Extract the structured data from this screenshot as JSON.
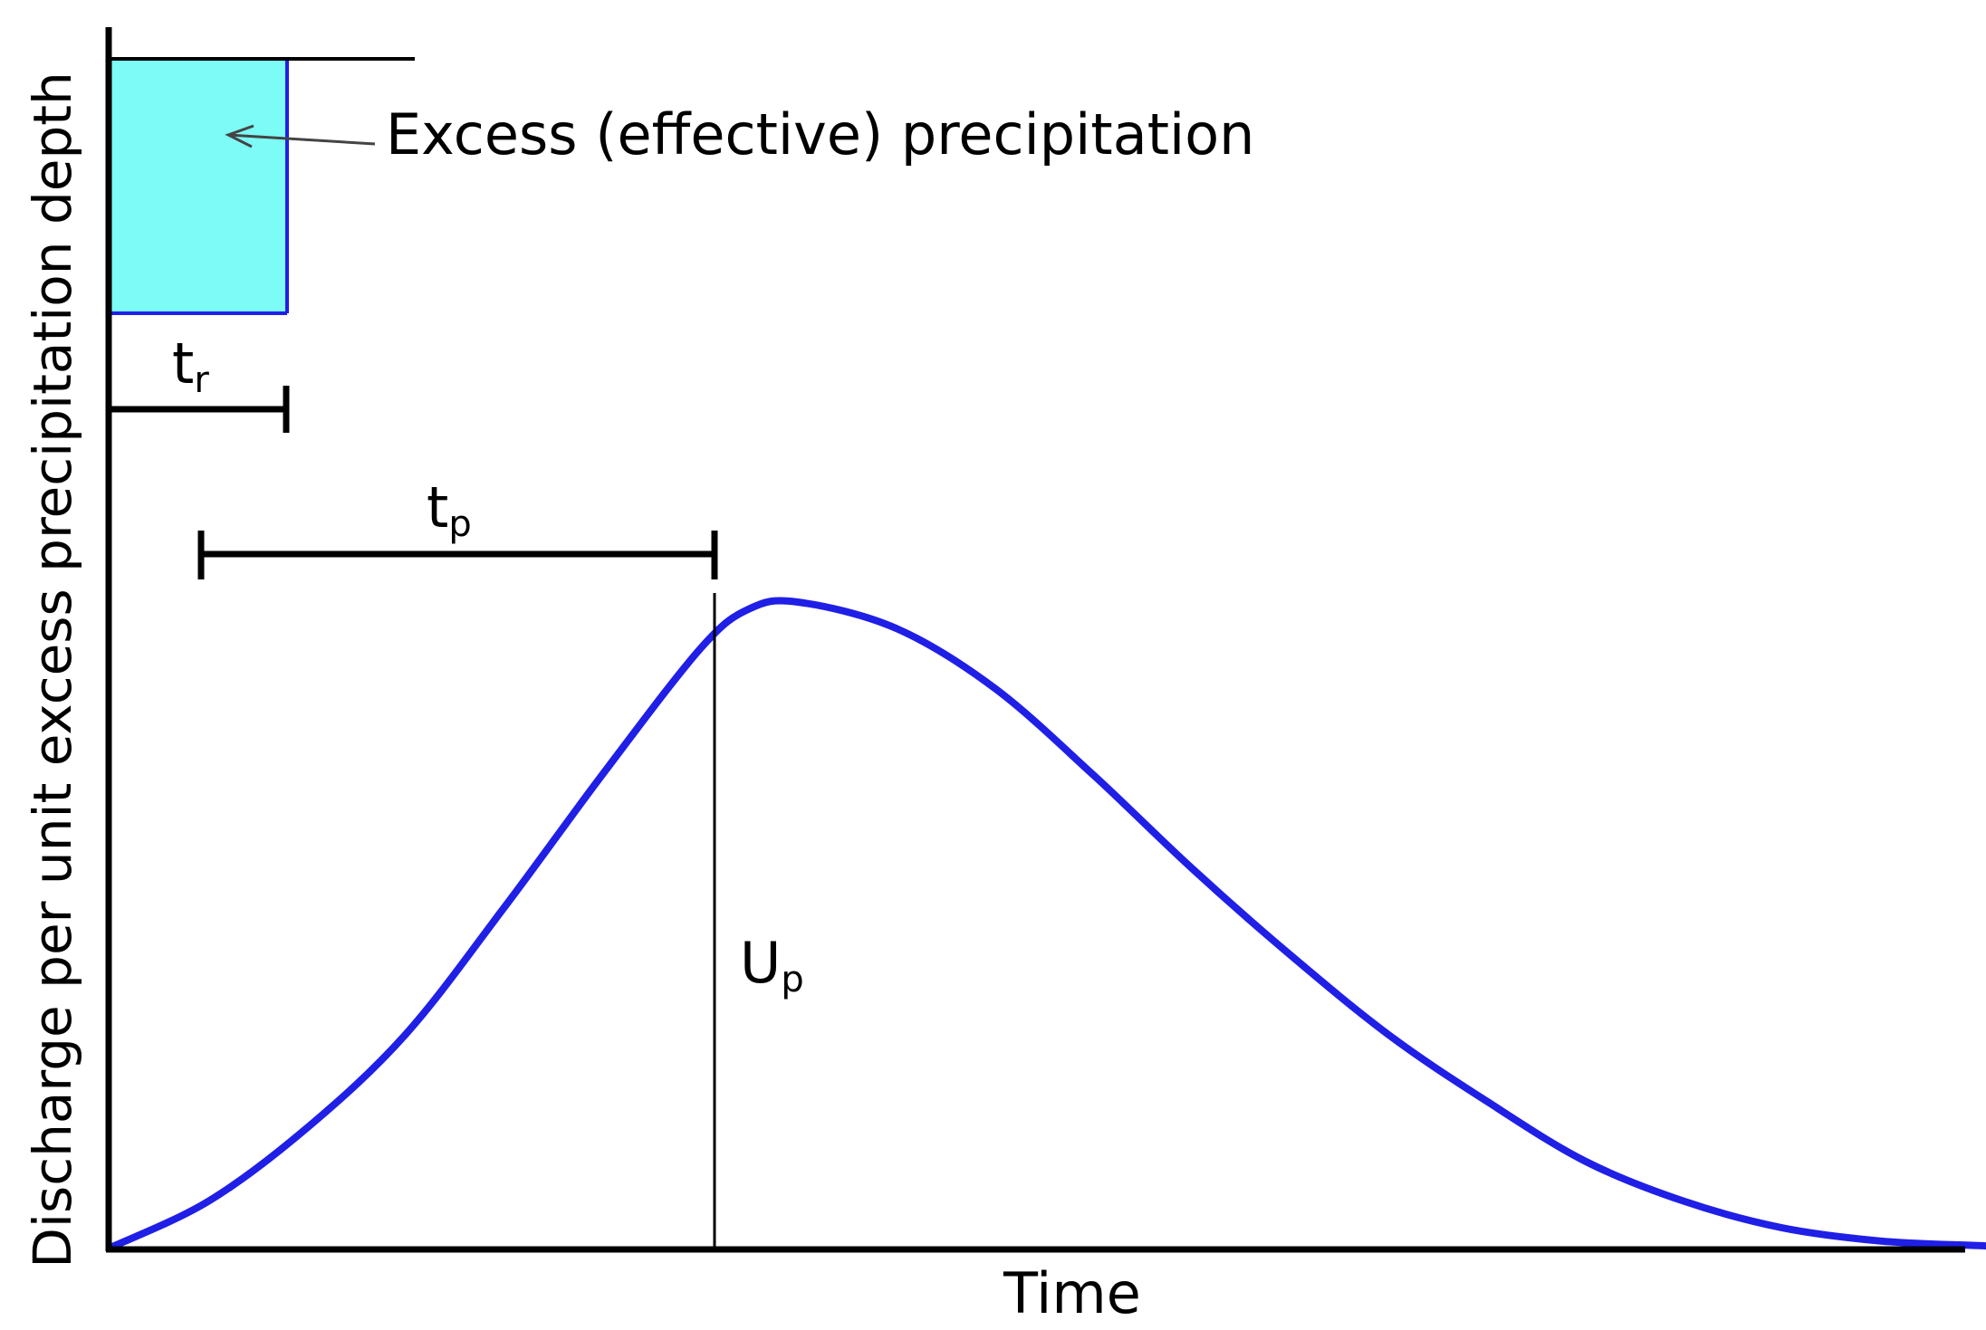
{
  "title": "",
  "axes": {
    "ylabel": "Discharge per unit excess precipitation depth",
    "xlabel": "Time"
  },
  "annotations": {
    "precip_label": "Excess (effective) precipitation",
    "tr_main": "t",
    "tr_sub": "r",
    "tp_main": "t",
    "tp_sub": "p",
    "up_main": "U",
    "up_sub": "p"
  },
  "colors": {
    "axis": "#000000",
    "hydrograph": "#1f1fe6",
    "precip_fill": "#7dfbf6",
    "precip_edge": "#1f1fe6"
  },
  "chart_data": {
    "type": "line",
    "title": "",
    "xlabel": "Time",
    "ylabel": "Discharge per unit excess precipitation depth",
    "grid": false,
    "series": [
      {
        "x": [
          0,
          0.05,
          0.1,
          0.15,
          0.2,
          0.25,
          0.3,
          0.325,
          0.35,
          0.4,
          0.45,
          0.5,
          0.55,
          0.6,
          0.65,
          0.7,
          0.75,
          0.8,
          0.85,
          0.9,
          0.95,
          0.98
        ],
        "y": [
          0.0,
          0.07,
          0.18,
          0.32,
          0.51,
          0.71,
          0.9,
          0.96,
          0.97,
          0.93,
          0.84,
          0.71,
          0.57,
          0.44,
          0.32,
          0.22,
          0.13,
          0.07,
          0.03,
          0.01,
          0.003,
          0.0
        ]
      }
    ]
  }
}
